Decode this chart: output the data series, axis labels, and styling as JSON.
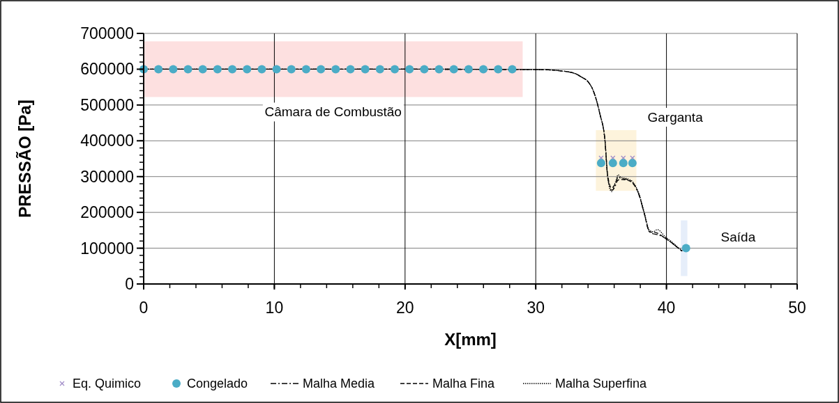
{
  "chart_data": {
    "type": "line",
    "xlabel": "X[mm]",
    "ylabel": "PRESSÃO [Pa]",
    "xlim": [
      0,
      50
    ],
    "xticks": [
      0,
      10,
      20,
      30,
      40,
      50
    ],
    "ylim": [
      0,
      700000
    ],
    "yticks": [
      0,
      100000,
      200000,
      300000,
      400000,
      500000,
      600000,
      700000
    ],
    "grid": true,
    "legend": "bottom",
    "bands": [
      {
        "axis": "x",
        "from": 0,
        "to": 29,
        "label": "Câmara de Combustão",
        "color": "#fde0e0"
      },
      {
        "axis": "x",
        "from": 34.6,
        "to": 37.7,
        "label": "Garganta",
        "color": "#fdf3dc"
      },
      {
        "axis": "x",
        "from": 41.1,
        "to": 41.6,
        "label": "Saída",
        "color": "#e6eefa"
      }
    ],
    "series": [
      {
        "name": "Eq. Quimico",
        "type": "scatter",
        "marker": "cross",
        "color": "#a08cc8",
        "x": [
          35.0,
          35.9,
          36.7,
          37.4
        ],
        "values": [
          352000,
          352000,
          352000,
          352000
        ]
      },
      {
        "name": "Congelado",
        "type": "scatter",
        "marker": "circle",
        "color": "#4bacc6",
        "x": [
          0,
          1.13,
          2.26,
          3.39,
          4.52,
          5.65,
          6.78,
          7.91,
          9.04,
          10.17,
          11.3,
          12.43,
          13.56,
          14.69,
          15.82,
          16.95,
          18.08,
          19.21,
          20.34,
          21.47,
          22.6,
          23.73,
          24.86,
          25.99,
          27.12,
          28.2,
          35.0,
          35.9,
          36.7,
          37.4,
          41.5
        ],
        "values": [
          600000,
          600000,
          600000,
          600000,
          600000,
          600000,
          600000,
          600000,
          600000,
          600000,
          600000,
          600000,
          600000,
          600000,
          600000,
          600000,
          600000,
          600000,
          600000,
          600000,
          600000,
          600000,
          600000,
          600000,
          600000,
          600000,
          338000,
          338000,
          338000,
          338000,
          100000
        ]
      },
      {
        "name": "Malha Media",
        "line_style": "dashdot",
        "color": "#000000",
        "x": [
          0,
          10,
          20,
          30,
          31,
          32,
          33,
          33.5,
          34,
          34.4,
          34.9,
          35.3,
          35.5,
          35.8,
          36.1,
          36.3,
          36.5,
          37,
          37.4,
          37.9,
          38.3,
          38.7,
          39,
          39.3,
          39.9,
          40.4,
          40.8,
          41.2
        ],
        "values": [
          600000,
          600000,
          600000,
          599000,
          598000,
          595000,
          588000,
          578000,
          565000,
          540000,
          476000,
          399000,
          301000,
          262000,
          275000,
          300000,
          295000,
          292000,
          284000,
          249000,
          197000,
          146000,
          140000,
          138000,
          128000,
          115000,
          103000,
          92000
        ]
      },
      {
        "name": "Malha Fina",
        "line_style": "dashed",
        "color": "#000000",
        "x": [
          0,
          10,
          20,
          30,
          31,
          32,
          33,
          33.5,
          34,
          34.4,
          34.9,
          35.3,
          35.5,
          35.8,
          36.1,
          36.3,
          36.5,
          37,
          37.4,
          37.9,
          38.3,
          38.7,
          39,
          39.3,
          39.9,
          40.4,
          40.8,
          41.2
        ],
        "values": [
          600000,
          600000,
          600000,
          599000,
          598000,
          595000,
          588000,
          578000,
          565000,
          540000,
          476000,
          399000,
          305000,
          268000,
          280000,
          290000,
          292000,
          290000,
          282000,
          249000,
          197000,
          146000,
          144000,
          142000,
          128000,
          115000,
          103000,
          92000
        ]
      },
      {
        "name": "Malha Superfina",
        "line_style": "dotted",
        "color": "#000000",
        "x": [
          0,
          10,
          20,
          30,
          31,
          32,
          33,
          33.5,
          34,
          34.4,
          34.9,
          35.3,
          35.5,
          35.8,
          36.1,
          36.3,
          36.5,
          37,
          37.4,
          37.9,
          38.3,
          38.7,
          39,
          39.3,
          39.9,
          40.4,
          40.8,
          41.2
        ],
        "values": [
          600000,
          600000,
          600000,
          599000,
          598000,
          595000,
          588000,
          578000,
          565000,
          540000,
          476000,
          399000,
          298000,
          258000,
          285000,
          305000,
          298000,
          294000,
          286000,
          252000,
          200000,
          150000,
          146000,
          152000,
          132000,
          118000,
          105000,
          93000
        ]
      }
    ]
  }
}
